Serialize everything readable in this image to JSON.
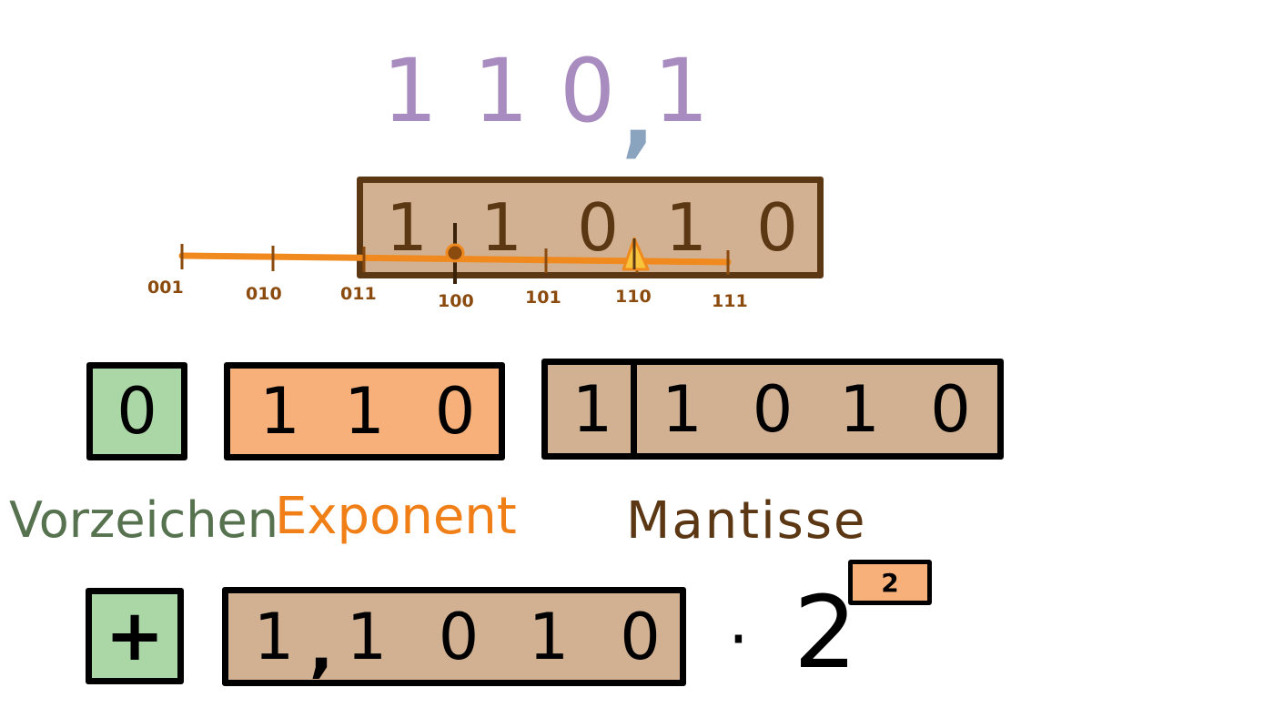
{
  "header_number": {
    "digits": [
      "1",
      "1",
      "0",
      "1"
    ],
    "comma": ",",
    "digit_color": "#a88bbf",
    "comma_color": "#8aa3bf"
  },
  "mantissa_preview": {
    "cells": [
      "1",
      "1",
      "0",
      "1",
      "0"
    ],
    "comma": ",",
    "fill_color": "#d2b192",
    "border_color": "#5b3813",
    "digit_color": "#5b3813"
  },
  "number_line": {
    "line_color": "#f08a1e",
    "labels": [
      "001",
      "010",
      "011",
      "100",
      "101",
      "110",
      "111"
    ],
    "highlighted_point": "100",
    "pointer_at": "110"
  },
  "encoding": {
    "sign": {
      "bits": [
        "0"
      ],
      "fill_color": "#abd6a6"
    },
    "exponent": {
      "bits": [
        "1",
        "1",
        "0"
      ],
      "fill_color": "#f7b07a"
    },
    "mantissa": {
      "hidden_bit": "1",
      "bits": [
        "1",
        "0",
        "1",
        "0"
      ],
      "fill_color": "#d2b192"
    }
  },
  "labels": {
    "sign": "Vorzeichen",
    "exponent": "Exponent",
    "mantissa": "Mantisse",
    "sign_color": "#56724f",
    "exponent_color": "#f07f18",
    "mantissa_color": "#5b3813"
  },
  "result": {
    "sign_symbol": "+",
    "mantissa_value": "1,1010",
    "mantissa_parts": [
      "1",
      ",",
      "1",
      "0",
      "1",
      "0"
    ],
    "multiply": "·",
    "base": "2",
    "exponent": "2",
    "exponent_fill_color": "#f7b07a"
  }
}
